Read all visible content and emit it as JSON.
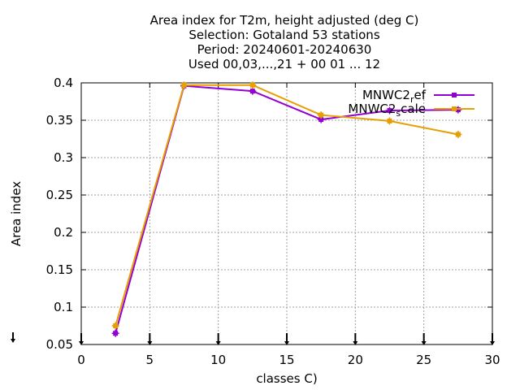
{
  "chart_data": {
    "type": "line",
    "title_lines": [
      "Area index  for T2m, height adjusted (deg C)",
      "Selection: Gotaland     53 stations",
      "Period: 20240601-20240630",
      "Used 00,03,...,21 + 00 01 ... 12"
    ],
    "xlabel": "classes C)",
    "ylabel": "Area index",
    "xlim": [
      0,
      30
    ],
    "ylim": [
      0.05,
      0.4
    ],
    "xticks": [
      0,
      5,
      10,
      15,
      20,
      25,
      30
    ],
    "xtick_labels": [
      "0",
      "5",
      "10",
      "15",
      "20",
      "25",
      "30"
    ],
    "yticks": [
      0.05,
      0.1,
      0.15,
      0.2,
      0.25,
      0.3,
      0.35,
      0.4
    ],
    "ytick_labels": [
      "0.05",
      "0.1",
      "0.15",
      "0.2",
      "0.25",
      "0.3",
      "0.35",
      "0.4"
    ],
    "grid": true,
    "legend_position": "top-right",
    "x": [
      2.5,
      7.5,
      12.5,
      17.5,
      22.5,
      27.5
    ],
    "series": [
      {
        "name": "MNWC2_ref",
        "label_main": "MNWC2",
        "label_sub": "r",
        "label_tail": "ef",
        "color": "#9400d3",
        "values": [
          0.065,
          0.396,
          0.389,
          0.351,
          0.363,
          0.364
        ]
      },
      {
        "name": "MNWC2_scale",
        "label_main": "MNWC2",
        "label_sub": "s",
        "label_tail": "cale",
        "color": "#e69f00",
        "values": [
          0.075,
          0.397,
          0.397,
          0.357,
          0.349,
          0.331
        ]
      }
    ],
    "bottom_markers_x": [
      0,
      5,
      10,
      15,
      20,
      25,
      30
    ]
  }
}
